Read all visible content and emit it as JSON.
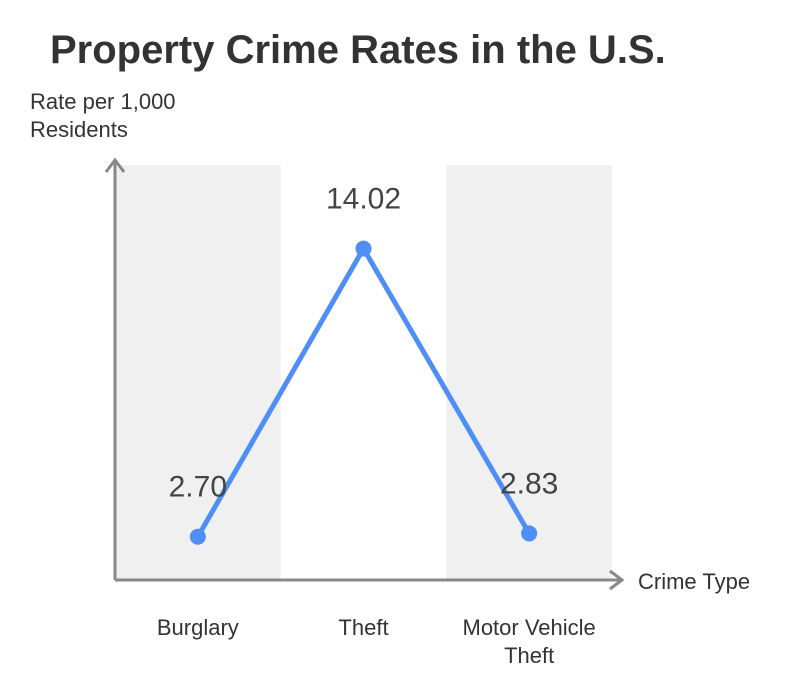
{
  "chart_data": {
    "type": "line",
    "title": "Property Crime Rates in the U.S.",
    "y_label": "Rate per 1,000 Residents",
    "x_label": "Crime Type",
    "categories": [
      "Burglary",
      "Theft",
      "Motor Vehicle Theft"
    ],
    "values": [
      2.7,
      14.02,
      2.83
    ],
    "value_labels": [
      "2.70",
      "14.02",
      "2.83"
    ],
    "color": "#4f8ef5",
    "ylim": [
      1,
      17.5
    ]
  }
}
